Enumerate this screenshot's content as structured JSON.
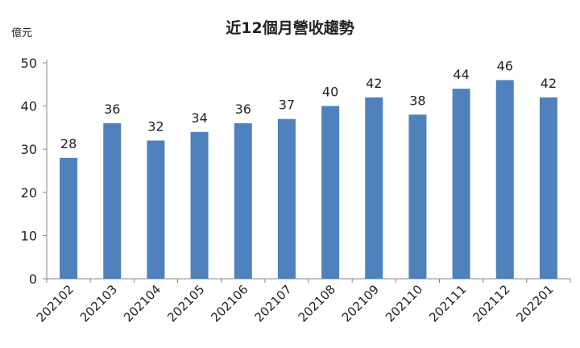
{
  "chart_data": {
    "type": "bar",
    "title": "近12個月營收趨勢",
    "ylabel": "億元",
    "xlabel": "",
    "categories": [
      "202102",
      "202103",
      "202104",
      "202105",
      "202106",
      "202107",
      "202108",
      "202109",
      "202110",
      "202111",
      "202112",
      "202201"
    ],
    "values": [
      28,
      36,
      32,
      34,
      36,
      37,
      40,
      42,
      38,
      44,
      46,
      42
    ],
    "data_labels": [
      "28",
      "36",
      "32",
      "34",
      "36",
      "37",
      "40",
      "42",
      "38",
      "44",
      "46",
      "42"
    ],
    "ylim": [
      0,
      50
    ],
    "yticks": [
      0,
      10,
      20,
      30,
      40,
      50
    ],
    "grid": false,
    "legend": "none",
    "colors": {
      "bar": "#4f81bd",
      "axis": "#868686",
      "text": "#222222"
    }
  }
}
